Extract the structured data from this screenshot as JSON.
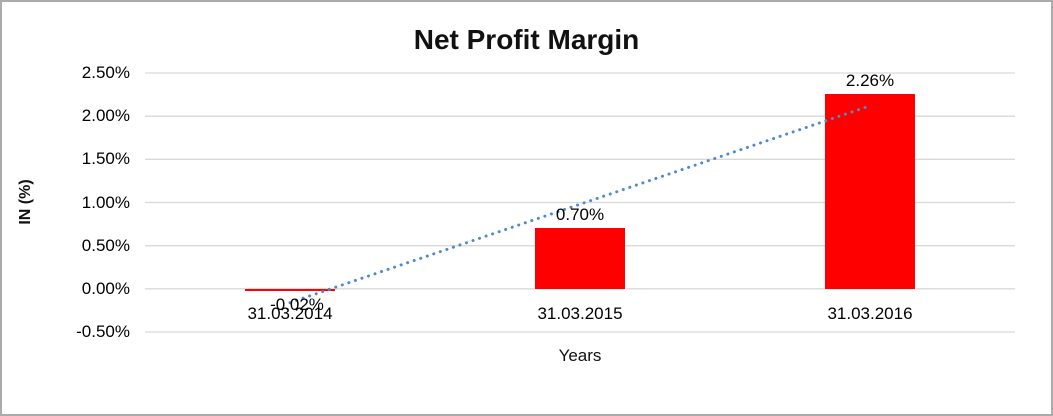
{
  "frame": {
    "border_color": "#ababab",
    "background": "#ffffff"
  },
  "chart_data": {
    "type": "bar",
    "title": "Net Profit Margin",
    "xlabel": "Years",
    "ylabel": "IN (%)",
    "categories": [
      "31.03.2014",
      "31.03.2015",
      "31.03.2016"
    ],
    "series": [
      {
        "name": "Net Profit Margin",
        "values": [
          -0.02,
          0.7,
          2.26
        ],
        "data_labels": [
          "-0.02%",
          "0.70%",
          "2.26%"
        ],
        "color": "#ff0000"
      }
    ],
    "trendline": {
      "type": "linear",
      "style": "dotted",
      "color": "#5089ce"
    },
    "ylim": [
      -0.5,
      2.5
    ],
    "y_ticks": [
      {
        "value": 2.5,
        "label": "2.50%"
      },
      {
        "value": 2.0,
        "label": "2.00%"
      },
      {
        "value": 1.5,
        "label": "1.50%"
      },
      {
        "value": 1.0,
        "label": "1.00%"
      },
      {
        "value": 0.5,
        "label": "0.50%"
      },
      {
        "value": 0.0,
        "label": "0.00%"
      },
      {
        "value": -0.5,
        "label": "-0.50%"
      }
    ],
    "grid": true,
    "gridline_color": "#d9d9d9",
    "legend": "none"
  }
}
